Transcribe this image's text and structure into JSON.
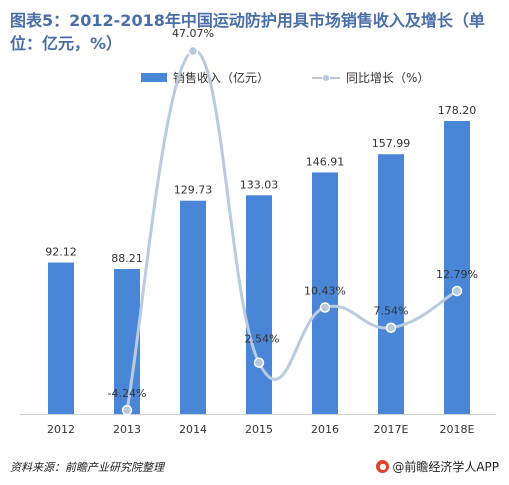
{
  "title": "图表5：2012-2018年中国运动防护用具市场销售收入及增长（单位：亿元，%）",
  "legend": {
    "bar_label": "销售收入（亿元）",
    "line_label": "同比增长（%）"
  },
  "footer": {
    "source": "资料来源：前瞻产业研究院整理",
    "brand": "@前瞻经济学人APP"
  },
  "colors": {
    "bar": "#4a86d8",
    "line": "#b8cbe0",
    "title": "#4a6ea8"
  },
  "chart_data": {
    "type": "bar",
    "categories": [
      "2012",
      "2013",
      "2014",
      "2015",
      "2016",
      "2017E",
      "2018E"
    ],
    "series": [
      {
        "name": "销售收入（亿元）",
        "type": "bar",
        "values": [
          92.12,
          88.21,
          129.73,
          133.03,
          146.91,
          157.99,
          178.2
        ],
        "labels": [
          "92.12",
          "88.21",
          "129.73",
          "133.03",
          "146.91",
          "157.99",
          "178.20"
        ]
      },
      {
        "name": "同比增长（%）",
        "type": "line",
        "smooth": true,
        "values": [
          null,
          -4.24,
          47.07,
          2.54,
          10.43,
          7.54,
          12.79
        ],
        "labels": [
          "",
          "-4.24%",
          "47.07%",
          "2.54%",
          "10.43%",
          "7.54%",
          "12.79%"
        ]
      }
    ],
    "legend_position": "top",
    "grid": false
  }
}
